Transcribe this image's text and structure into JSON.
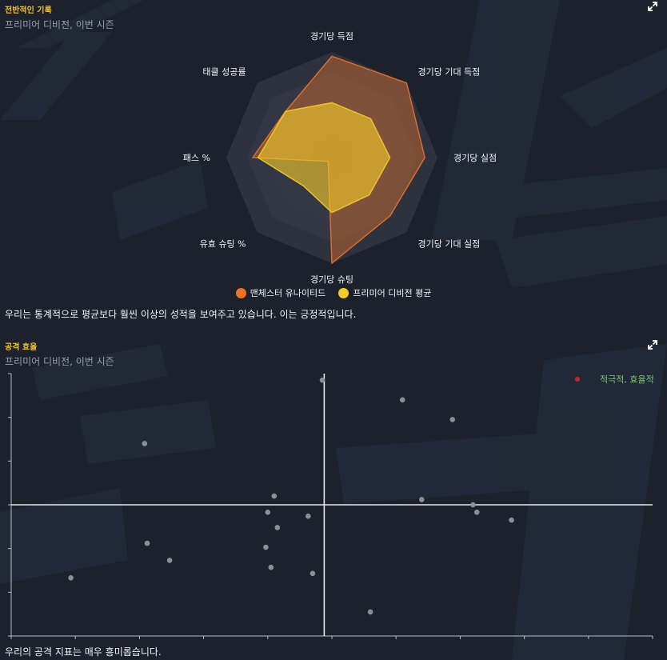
{
  "radar_panel": {
    "title": "전반적인 기록",
    "subtitle": "프리미어 디비전, 이번 시즌",
    "caption": "우리는 통계적으로 평균보다 훨씬 이상의 성적을 보여주고 있습니다. 이는 긍정적입니다.",
    "expand_icon": "expand-icon"
  },
  "scatter_panel": {
    "title": "공격 효율",
    "subtitle": "프리미어 디비전, 이번 시즌",
    "caption": "우리의 공격 지표는 매우 흥미롭습니다.",
    "legend_label": "적극적, 효율적",
    "expand_icon": "expand-icon"
  },
  "colors": {
    "team": "#e8722a",
    "average": "#f5cc2a",
    "quadrant_point": "#c8232c",
    "legend_text": "#7bc86c",
    "title": "#f2c230"
  },
  "chart_data": [
    {
      "type": "radar",
      "axes": [
        "경기당 득점",
        "경기당 기대 득점",
        "경기당 실점",
        "경기당 기대 실점",
        "경기당 슈팅",
        "유효 슈팅 %",
        "패스 %",
        "태클 성공률"
      ],
      "rmax": 100,
      "rings": 5,
      "series": [
        {
          "name": "맨체스터 유나이티드",
          "values": [
            96,
            100,
            88,
            78,
            100,
            5,
            75,
            62
          ]
        },
        {
          "name": "프리미어 디비전 평균",
          "values": [
            52,
            52,
            55,
            50,
            52,
            38,
            70,
            62
          ]
        }
      ]
    },
    {
      "type": "scatter",
      "xlim": [
        0,
        10
      ],
      "ylim": [
        0,
        6
      ],
      "x_divider": 4.88,
      "y_divider": 3,
      "points": [
        [
          4.85,
          5.85
        ],
        [
          6.1,
          5.4
        ],
        [
          6.88,
          4.95
        ],
        [
          2.08,
          4.4
        ],
        [
          4.1,
          3.2
        ],
        [
          6.4,
          3.12
        ],
        [
          7.2,
          3.0
        ],
        [
          7.26,
          2.83
        ],
        [
          4.0,
          2.83
        ],
        [
          4.63,
          2.74
        ],
        [
          7.8,
          2.65
        ],
        [
          4.15,
          2.48
        ],
        [
          2.12,
          2.12
        ],
        [
          3.97,
          2.03
        ],
        [
          2.47,
          1.73
        ],
        [
          4.05,
          1.57
        ],
        [
          4.7,
          1.43
        ],
        [
          0.93,
          1.33
        ],
        [
          5.6,
          0.55
        ]
      ],
      "series": [
        {
          "name": "적극적, 효율적"
        }
      ]
    }
  ]
}
